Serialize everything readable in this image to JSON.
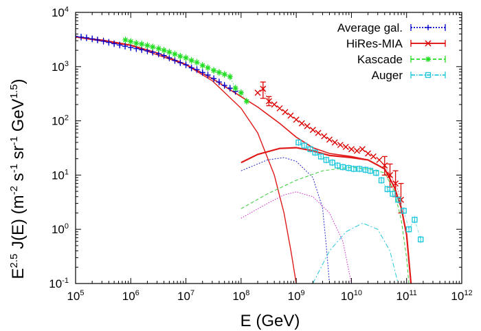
{
  "chart_data": {
    "type": "scatter",
    "title": "",
    "xlabel": "E (GeV)",
    "ylabel": "E^2.5 J(E) (m^-2 s^-1 sr^-1 GeV^1.5)",
    "xlabel_parts": {
      "main": "E (GeV)"
    },
    "ylabel_parts": {
      "a": "E",
      "a_sup": "2.5",
      "b": " J(E) (m",
      "b_sup": "-2",
      "c": " s",
      "c_sup": "-1",
      "d": " sr",
      "d_sup": "-1",
      "e": " GeV",
      "e_sup": "1.5",
      "f": ")"
    },
    "x_scale": "log",
    "y_scale": "log",
    "xlim": [
      100000,
      1000000000000
    ],
    "ylim": [
      0.1,
      10000
    ],
    "x_ticks": [
      {
        "base": "10",
        "exp": "5"
      },
      {
        "base": "10",
        "exp": "6"
      },
      {
        "base": "10",
        "exp": "7"
      },
      {
        "base": "10",
        "exp": "8"
      },
      {
        "base": "10",
        "exp": "9"
      },
      {
        "base": "10",
        "exp": "10"
      },
      {
        "base": "10",
        "exp": "11"
      },
      {
        "base": "10",
        "exp": "12"
      }
    ],
    "y_ticks": [
      {
        "label": "10",
        "exp": "-1"
      },
      {
        "label": "10",
        "exp": "0"
      },
      {
        "label": "10",
        "exp": "1"
      },
      {
        "label": "10",
        "exp": "2"
      },
      {
        "label": "10",
        "exp": "3"
      },
      {
        "label": "10",
        "exp": "4"
      }
    ],
    "grid": false,
    "legend_position": "top-right",
    "colors": {
      "average": "#0000cc",
      "hires": "#dd0000",
      "kascade": "#22dd22",
      "auger": "#22c8dc",
      "model_total": "#e01818",
      "comp_blue": "#2222cc",
      "comp_magenta": "#cc22cc",
      "comp_green": "#33cc33",
      "comp_cyan": "#22c8dc"
    },
    "series": [
      {
        "name": "Average gal.",
        "marker": "plus",
        "points": [
          [
            100000.0,
            3600
          ],
          [
            126000.0,
            3500
          ],
          [
            158000.0,
            3400
          ],
          [
            200000.0,
            3250
          ],
          [
            250000.0,
            3100
          ],
          [
            320000.0,
            2950
          ],
          [
            400000.0,
            2800
          ],
          [
            500000.0,
            2650
          ],
          [
            630000.0,
            2500
          ],
          [
            790000.0,
            2380
          ],
          [
            1000000.0,
            2250
          ],
          [
            1260000.0,
            2150
          ],
          [
            1580000.0,
            2050
          ],
          [
            2000000.0,
            1950
          ],
          [
            2500000.0,
            1850
          ],
          [
            3200000.0,
            1720
          ],
          [
            4000000.0,
            1600
          ],
          [
            5000000.0,
            1450
          ],
          [
            6300000.0,
            1300
          ],
          [
            7900000.0,
            1180
          ],
          [
            10000000.0,
            1080
          ],
          [
            12600000.0,
            950
          ],
          [
            15800000.0,
            880
          ],
          [
            20000000.0,
            780
          ],
          [
            25000000.0,
            700
          ],
          [
            32000000.0,
            600
          ],
          [
            40000000.0,
            520
          ],
          [
            50000000.0,
            450
          ],
          [
            63000000.0,
            400
          ],
          [
            79000000.0,
            350
          ]
        ]
      },
      {
        "name": "HiRes-MIA",
        "marker": "x",
        "points": [
          [
            200000000.0,
            330
          ],
          [
            250000000.0,
            390
          ],
          [
            320000000.0,
            230
          ],
          [
            400000000.0,
            200
          ],
          [
            500000000.0,
            170
          ],
          [
            630000000.0,
            145
          ],
          [
            790000000.0,
            125
          ],
          [
            1000000000.0,
            105
          ],
          [
            1260000000.0,
            90
          ],
          [
            1580000000.0,
            80
          ],
          [
            2000000000.0,
            68
          ],
          [
            2500000000.0,
            60
          ],
          [
            3200000000.0,
            52
          ],
          [
            4000000000.0,
            45
          ],
          [
            5000000000.0,
            40
          ],
          [
            6300000000.0,
            36
          ],
          [
            7900000000.0,
            33
          ],
          [
            10000000000.0,
            30
          ],
          [
            12600000000.0,
            28
          ],
          [
            15800000000.0,
            30
          ],
          [
            20000000000.0,
            25
          ],
          [
            25000000000.0,
            22
          ],
          [
            32000000000.0,
            19
          ],
          [
            40000000000.0,
            15
          ],
          [
            50000000000.0,
            10
          ],
          [
            63000000000.0,
            7
          ],
          [
            79000000000.0,
            3.5
          ]
        ],
        "error_points": [
          [
            250000000.0,
            260,
            520
          ],
          [
            320000000.0,
            190,
            280
          ],
          [
            40000000000.0,
            10,
            22
          ],
          [
            50000000000.0,
            6,
            16
          ],
          [
            63000000000.0,
            4,
            12
          ],
          [
            79000000000.0,
            2,
            7
          ]
        ]
      },
      {
        "name": "Kascade",
        "marker": "star",
        "points": [
          [
            800000.0,
            3100
          ],
          [
            1000000.0,
            2900
          ],
          [
            1260000.0,
            2700
          ],
          [
            1580000.0,
            2600
          ],
          [
            2000000.0,
            2450
          ],
          [
            2500000.0,
            2300
          ],
          [
            3200000.0,
            2150
          ],
          [
            4000000.0,
            2000
          ],
          [
            5000000.0,
            1850
          ],
          [
            6300000.0,
            1700
          ],
          [
            7900000.0,
            1550
          ],
          [
            10000000.0,
            1450
          ],
          [
            12600000.0,
            1300
          ],
          [
            15800000.0,
            1200
          ],
          [
            20000000.0,
            1050
          ],
          [
            25000000.0,
            950
          ],
          [
            32000000.0,
            850
          ],
          [
            40000000.0,
            780
          ],
          [
            50000000.0,
            720
          ],
          [
            63000000.0,
            650
          ],
          [
            79000000.0,
            400
          ],
          [
            100000000.0,
            330
          ],
          [
            126000000.0,
            230
          ]
        ]
      },
      {
        "name": "Auger",
        "marker": "square",
        "points": [
          [
            1100000000.0,
            40
          ],
          [
            1400000000.0,
            35
          ],
          [
            1800000000.0,
            30
          ],
          [
            2200000000.0,
            26
          ],
          [
            2800000000.0,
            22
          ],
          [
            3500000000.0,
            19
          ],
          [
            4500000000.0,
            17
          ],
          [
            5600000000.0,
            15
          ],
          [
            7000000000.0,
            14
          ],
          [
            8900000000.0,
            13.5
          ],
          [
            11000000000.0,
            13
          ],
          [
            14000000000.0,
            13
          ],
          [
            18000000000.0,
            12.5
          ],
          [
            22000000000.0,
            12
          ],
          [
            28000000000.0,
            11
          ],
          [
            35000000000.0,
            8
          ],
          [
            45000000000.0,
            5.5
          ],
          [
            56000000000.0,
            4.5
          ],
          [
            70000000000.0,
            3.5
          ],
          [
            89000000000.0,
            2.2
          ],
          [
            110000000000.0,
            1.0
          ],
          [
            140000000000.0,
            1.5
          ],
          [
            180000000000.0,
            0.65
          ]
        ]
      }
    ],
    "model_curves": [
      {
        "role": "total",
        "style": "solid",
        "points": [
          [
            100000.0,
            3500
          ],
          [
            300000.0,
            3100
          ],
          [
            1000000.0,
            2500
          ],
          [
            3000000.0,
            1800
          ],
          [
            10000000.0,
            1100
          ],
          [
            30000000.0,
            600
          ],
          [
            100000000.0,
            280
          ],
          [
            200000000.0,
            180
          ],
          [
            500000000.0,
            90
          ],
          [
            1000000000.0,
            50
          ],
          [
            2000000000.0,
            32
          ],
          [
            4000000000.0,
            25
          ],
          [
            10000000000.0,
            22
          ],
          [
            20000000000.0,
            19
          ],
          [
            40000000000.0,
            13
          ],
          [
            60000000000.0,
            6
          ],
          [
            80000000000.0,
            2.5
          ],
          [
            100000000000.0,
            0.8
          ],
          [
            120000000000.0,
            0.1
          ]
        ]
      },
      {
        "role": "galactic",
        "style": "solid",
        "points": [
          [
            100000.0,
            3500
          ],
          [
            1000000.0,
            2450
          ],
          [
            10000000.0,
            1080
          ],
          [
            30000000.0,
            550
          ],
          [
            100000000.0,
            170
          ],
          [
            200000000.0,
            60
          ],
          [
            400000000.0,
            10
          ],
          [
            600000000.0,
            2
          ],
          [
            800000000.0,
            0.4
          ],
          [
            1000000000.0,
            0.1
          ]
        ]
      },
      {
        "role": "extragalactic-sum",
        "style": "solid",
        "points": [
          [
            100000000.0,
            17
          ],
          [
            200000000.0,
            24
          ],
          [
            500000000.0,
            31
          ],
          [
            1000000000.0,
            32
          ],
          [
            2000000000.0,
            28
          ],
          [
            4000000000.0,
            23
          ],
          [
            10000000000.0,
            21
          ],
          [
            20000000000.0,
            19
          ],
          [
            40000000000.0,
            13
          ],
          [
            60000000000.0,
            6
          ],
          [
            80000000000.0,
            2.5
          ],
          [
            100000000000.0,
            0.8
          ],
          [
            120000000000.0,
            0.1
          ]
        ]
      },
      {
        "role": "component-blue",
        "style": "dotted",
        "points": [
          [
            100000000.0,
            12
          ],
          [
            300000000.0,
            19
          ],
          [
            600000000.0,
            21
          ],
          [
            1000000000.0,
            18
          ],
          [
            2000000000.0,
            9
          ],
          [
            3000000000.0,
            2.5
          ],
          [
            3500000000.0,
            0.5
          ],
          [
            4000000000.0,
            0.1
          ]
        ]
      },
      {
        "role": "component-magenta",
        "style": "dotted",
        "points": [
          [
            100000000.0,
            1.6
          ],
          [
            300000000.0,
            3
          ],
          [
            600000000.0,
            4.3
          ],
          [
            1000000000.0,
            4.9
          ],
          [
            2000000000.0,
            4
          ],
          [
            4000000000.0,
            2
          ],
          [
            7000000000.0,
            0.6
          ],
          [
            10000000000.0,
            0.1
          ]
        ]
      },
      {
        "role": "component-green",
        "style": "dashed",
        "points": [
          [
            100000000.0,
            2.4
          ],
          [
            300000000.0,
            4.5
          ],
          [
            1000000000.0,
            8
          ],
          [
            3000000000.0,
            12
          ],
          [
            10000000000.0,
            14
          ],
          [
            20000000000.0,
            13
          ],
          [
            40000000000.0,
            11
          ],
          [
            60000000000.0,
            5
          ],
          [
            80000000000.0,
            1.5
          ],
          [
            100000000000.0,
            0.3
          ],
          [
            110000000000.0,
            0.1
          ]
        ]
      },
      {
        "role": "component-cyan",
        "style": "dashdot",
        "points": [
          [
            2000000000.0,
            0.1
          ],
          [
            4000000000.0,
            0.4
          ],
          [
            8000000000.0,
            0.9
          ],
          [
            16000000000.0,
            1.3
          ],
          [
            30000000000.0,
            1.0
          ],
          [
            50000000000.0,
            0.4
          ],
          [
            70000000000.0,
            0.1
          ]
        ]
      }
    ],
    "legend": [
      {
        "label": "Average gal.",
        "series_index": 0
      },
      {
        "label": "HiRes-MIA",
        "series_index": 1
      },
      {
        "label": "Kascade",
        "series_index": 2
      },
      {
        "label": "Auger",
        "series_index": 3
      }
    ]
  }
}
